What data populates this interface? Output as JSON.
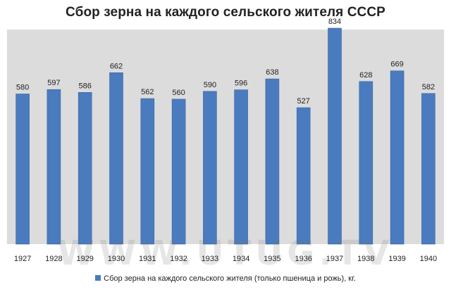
{
  "title": "Сбор зерна на каждого сельского жителя СССР",
  "watermark_text": "WWW.UTUG.TV",
  "colors": {
    "bar": "#4a7bbf",
    "plot_background": "#dcdcdc"
  },
  "legend": {
    "label": "Сбор зерна на каждого сельского жителя (только пшеница и рожь), кг."
  },
  "chart_data": {
    "type": "bar",
    "title": "Сбор зерна на каждого сельского жителя СССР",
    "categories": [
      "1927",
      "1928",
      "1929",
      "1930",
      "1931",
      "1932",
      "1933",
      "1934",
      "1935",
      "1936",
      "1937",
      "1938",
      "1939",
      "1940"
    ],
    "series": [
      {
        "name": "Сбор зерна на каждого сельского жителя (только пшеница и рожь), кг.",
        "values": [
          580,
          597,
          586,
          662,
          562,
          560,
          590,
          596,
          638,
          527,
          834,
          628,
          669,
          582
        ]
      }
    ],
    "ylim": [
      0,
      900
    ],
    "grid": false,
    "legend_position": "bottom",
    "data_labels": true
  }
}
